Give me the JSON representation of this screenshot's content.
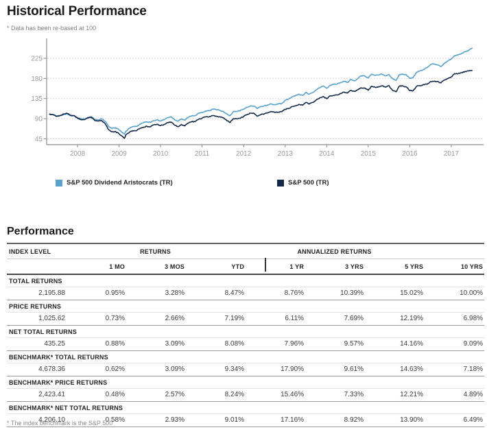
{
  "title": "Historical Performance",
  "rebase_note": "* Data has been re-based at 100",
  "colors": {
    "aristocrats_line": "#57A2CE",
    "sp500_line": "#15294B",
    "grid_line": "#d5d5d5",
    "axis_line": "#8a8a8a",
    "tick_label": "#9b9b9b"
  },
  "chart_data": {
    "type": "line",
    "title": "",
    "xlabel": "",
    "ylabel": "",
    "grid": true,
    "legend_position": "bottom",
    "x_axis": {
      "ticks": [
        2008,
        2009,
        2010,
        2011,
        2012,
        2013,
        2014,
        2015,
        2016,
        2017
      ],
      "range": [
        2007.3,
        2017.78
      ]
    },
    "y_axis": {
      "ticks": [
        45,
        90,
        135,
        180,
        225
      ],
      "range": [
        32,
        268
      ]
    },
    "series": [
      {
        "name": "S&P 500 Dividend Aristocrats (TR)",
        "color": "#57A2CE",
        "points": [
          [
            2007.33,
            100
          ],
          [
            2007.42,
            98.8
          ],
          [
            2007.5,
            96.0
          ],
          [
            2007.58,
            97.0
          ],
          [
            2007.67,
            99.5
          ],
          [
            2007.75,
            100.5
          ],
          [
            2007.83,
            96.8
          ],
          [
            2007.92,
            96.2
          ],
          [
            2008.0,
            91.8
          ],
          [
            2008.08,
            89.8
          ],
          [
            2008.17,
            89.2
          ],
          [
            2008.25,
            93.2
          ],
          [
            2008.33,
            94.2
          ],
          [
            2008.42,
            87.8
          ],
          [
            2008.5,
            87.2
          ],
          [
            2008.58,
            89.8
          ],
          [
            2008.67,
            84.0
          ],
          [
            2008.75,
            72.5
          ],
          [
            2008.83,
            67.8
          ],
          [
            2008.92,
            70.0
          ],
          [
            2009.0,
            64.8
          ],
          [
            2009.08,
            58.8
          ],
          [
            2009.13,
            55.2
          ],
          [
            2009.17,
            62.2
          ],
          [
            2009.25,
            68.6
          ],
          [
            2009.33,
            72.2
          ],
          [
            2009.42,
            72.6
          ],
          [
            2009.5,
            77.6
          ],
          [
            2009.58,
            80.6
          ],
          [
            2009.67,
            83.2
          ],
          [
            2009.75,
            81.6
          ],
          [
            2009.83,
            85.6
          ],
          [
            2009.92,
            87.2
          ],
          [
            2010.0,
            84.6
          ],
          [
            2010.08,
            87.6
          ],
          [
            2010.17,
            92.6
          ],
          [
            2010.25,
            94.6
          ],
          [
            2010.33,
            88.2
          ],
          [
            2010.42,
            84.2
          ],
          [
            2010.5,
            89.6
          ],
          [
            2010.58,
            86.6
          ],
          [
            2010.67,
            93.2
          ],
          [
            2010.75,
            96.2
          ],
          [
            2010.83,
            96.6
          ],
          [
            2010.92,
            102.2
          ],
          [
            2011.0,
            103.6
          ],
          [
            2011.08,
            107.2
          ],
          [
            2011.17,
            107.6
          ],
          [
            2011.25,
            111.2
          ],
          [
            2011.33,
            110.6
          ],
          [
            2011.42,
            108.6
          ],
          [
            2011.5,
            106.6
          ],
          [
            2011.58,
            101.6
          ],
          [
            2011.67,
            96.6
          ],
          [
            2011.75,
            105.6
          ],
          [
            2011.83,
            106.2
          ],
          [
            2011.92,
            108.6
          ],
          [
            2012.0,
            111.6
          ],
          [
            2012.08,
            115.6
          ],
          [
            2012.17,
            118.6
          ],
          [
            2012.25,
            118.0
          ],
          [
            2012.33,
            112.6
          ],
          [
            2012.42,
            117.0
          ],
          [
            2012.5,
            118.6
          ],
          [
            2012.58,
            120.6
          ],
          [
            2012.67,
            123.0
          ],
          [
            2012.75,
            121.6
          ],
          [
            2012.83,
            122.6
          ],
          [
            2012.92,
            124.0
          ],
          [
            2013.0,
            131.0
          ],
          [
            2013.08,
            133.6
          ],
          [
            2013.17,
            139.0
          ],
          [
            2013.25,
            142.0
          ],
          [
            2013.33,
            144.6
          ],
          [
            2013.42,
            142.0
          ],
          [
            2013.5,
            149.0
          ],
          [
            2013.58,
            144.6
          ],
          [
            2013.67,
            148.6
          ],
          [
            2013.75,
            155.0
          ],
          [
            2013.83,
            159.0
          ],
          [
            2013.92,
            163.0
          ],
          [
            2014.0,
            158.0
          ],
          [
            2014.08,
            164.6
          ],
          [
            2014.17,
            166.6
          ],
          [
            2014.25,
            167.6
          ],
          [
            2014.33,
            170.6
          ],
          [
            2014.42,
            173.6
          ],
          [
            2014.5,
            171.0
          ],
          [
            2014.58,
            177.6
          ],
          [
            2014.67,
            174.6
          ],
          [
            2014.75,
            180.0
          ],
          [
            2014.83,
            186.0
          ],
          [
            2014.92,
            185.6
          ],
          [
            2015.0,
            181.0
          ],
          [
            2015.08,
            189.6
          ],
          [
            2015.17,
            187.0
          ],
          [
            2015.25,
            187.6
          ],
          [
            2015.33,
            189.6
          ],
          [
            2015.42,
            186.0
          ],
          [
            2015.5,
            189.0
          ],
          [
            2015.58,
            179.6
          ],
          [
            2015.67,
            175.6
          ],
          [
            2015.75,
            188.6
          ],
          [
            2015.83,
            190.0
          ],
          [
            2015.92,
            188.0
          ],
          [
            2016.0,
            180.6
          ],
          [
            2016.08,
            181.6
          ],
          [
            2016.17,
            194.0
          ],
          [
            2016.25,
            196.6
          ],
          [
            2016.33,
            200.0
          ],
          [
            2016.42,
            204.0
          ],
          [
            2016.5,
            211.0
          ],
          [
            2016.58,
            212.5
          ],
          [
            2016.67,
            210.5
          ],
          [
            2016.75,
            206.5
          ],
          [
            2016.83,
            213.5
          ],
          [
            2016.92,
            219.0
          ],
          [
            2017.0,
            223.5
          ],
          [
            2017.08,
            231.0
          ],
          [
            2017.17,
            232.5
          ],
          [
            2017.25,
            236.0
          ],
          [
            2017.33,
            239.5
          ],
          [
            2017.42,
            243.0
          ],
          [
            2017.5,
            247.5
          ]
        ]
      },
      {
        "name": "S&P 500 (TR)",
        "color": "#15294B",
        "points": [
          [
            2007.33,
            100
          ],
          [
            2007.42,
            98.3
          ],
          [
            2007.5,
            95.3
          ],
          [
            2007.58,
            96.7
          ],
          [
            2007.67,
            100.3
          ],
          [
            2007.75,
            101.9
          ],
          [
            2007.83,
            97.6
          ],
          [
            2007.92,
            96.9
          ],
          [
            2008.0,
            91.1
          ],
          [
            2008.08,
            88.2
          ],
          [
            2008.17,
            87.8
          ],
          [
            2008.25,
            92.1
          ],
          [
            2008.33,
            93.3
          ],
          [
            2008.42,
            85.5
          ],
          [
            2008.5,
            84.8
          ],
          [
            2008.58,
            86.0
          ],
          [
            2008.67,
            78.3
          ],
          [
            2008.75,
            65.1
          ],
          [
            2008.83,
            60.4
          ],
          [
            2008.92,
            61.1
          ],
          [
            2009.0,
            56.0
          ],
          [
            2009.08,
            50.1
          ],
          [
            2009.13,
            46.2
          ],
          [
            2009.17,
            54.5
          ],
          [
            2009.25,
            59.7
          ],
          [
            2009.33,
            63.0
          ],
          [
            2009.42,
            63.1
          ],
          [
            2009.5,
            67.9
          ],
          [
            2009.58,
            70.4
          ],
          [
            2009.67,
            73.0
          ],
          [
            2009.75,
            71.6
          ],
          [
            2009.83,
            75.9
          ],
          [
            2009.92,
            77.3
          ],
          [
            2010.0,
            74.5
          ],
          [
            2010.08,
            76.8
          ],
          [
            2010.17,
            81.4
          ],
          [
            2010.25,
            82.7
          ],
          [
            2010.33,
            76.1
          ],
          [
            2010.42,
            72.1
          ],
          [
            2010.5,
            77.2
          ],
          [
            2010.58,
            73.7
          ],
          [
            2010.67,
            80.3
          ],
          [
            2010.75,
            83.3
          ],
          [
            2010.83,
            83.3
          ],
          [
            2010.92,
            88.9
          ],
          [
            2011.0,
            91.0
          ],
          [
            2011.08,
            94.1
          ],
          [
            2011.17,
            94.1
          ],
          [
            2011.25,
            96.9
          ],
          [
            2011.33,
            95.8
          ],
          [
            2011.42,
            94.2
          ],
          [
            2011.5,
            92.3
          ],
          [
            2011.58,
            87.3
          ],
          [
            2011.67,
            81.2
          ],
          [
            2011.75,
            90.1
          ],
          [
            2011.83,
            89.9
          ],
          [
            2011.92,
            90.8
          ],
          [
            2012.0,
            94.9
          ],
          [
            2012.08,
            99.0
          ],
          [
            2012.17,
            102.3
          ],
          [
            2012.25,
            101.7
          ],
          [
            2012.33,
            95.6
          ],
          [
            2012.42,
            99.5
          ],
          [
            2012.5,
            100.9
          ],
          [
            2012.58,
            103.2
          ],
          [
            2012.67,
            105.9
          ],
          [
            2012.75,
            104.0
          ],
          [
            2012.83,
            104.6
          ],
          [
            2012.92,
            105.5
          ],
          [
            2013.0,
            111.0
          ],
          [
            2013.08,
            112.6
          ],
          [
            2013.17,
            116.9
          ],
          [
            2013.25,
            119.1
          ],
          [
            2013.33,
            121.8
          ],
          [
            2013.42,
            120.2
          ],
          [
            2013.5,
            126.3
          ],
          [
            2013.58,
            122.6
          ],
          [
            2013.67,
            126.4
          ],
          [
            2013.75,
            132.2
          ],
          [
            2013.83,
            136.2
          ],
          [
            2013.92,
            139.6
          ],
          [
            2014.0,
            134.7
          ],
          [
            2014.08,
            140.9
          ],
          [
            2014.17,
            142.0
          ],
          [
            2014.25,
            143.0
          ],
          [
            2014.33,
            146.3
          ],
          [
            2014.42,
            149.4
          ],
          [
            2014.5,
            147.3
          ],
          [
            2014.58,
            153.2
          ],
          [
            2014.67,
            151.1
          ],
          [
            2014.75,
            154.7
          ],
          [
            2014.83,
            158.9
          ],
          [
            2014.92,
            158.4
          ],
          [
            2015.0,
            153.6
          ],
          [
            2015.08,
            162.4
          ],
          [
            2015.17,
            159.8
          ],
          [
            2015.25,
            161.4
          ],
          [
            2015.33,
            163.5
          ],
          [
            2015.42,
            160.4
          ],
          [
            2015.5,
            163.8
          ],
          [
            2015.58,
            154.0
          ],
          [
            2015.67,
            150.1
          ],
          [
            2015.75,
            162.7
          ],
          [
            2015.83,
            163.2
          ],
          [
            2015.92,
            160.6
          ],
          [
            2016.0,
            152.6
          ],
          [
            2016.08,
            152.4
          ],
          [
            2016.17,
            162.8
          ],
          [
            2016.25,
            163.4
          ],
          [
            2016.33,
            166.4
          ],
          [
            2016.42,
            166.9
          ],
          [
            2016.5,
            173.0
          ],
          [
            2016.58,
            173.2
          ],
          [
            2016.67,
            173.2
          ],
          [
            2016.75,
            170.1
          ],
          [
            2016.83,
            176.4
          ],
          [
            2016.92,
            179.9
          ],
          [
            2017.0,
            183.3
          ],
          [
            2017.08,
            190.7
          ],
          [
            2017.17,
            190.9
          ],
          [
            2017.25,
            192.8
          ],
          [
            2017.33,
            195.5
          ],
          [
            2017.42,
            196.6
          ],
          [
            2017.5,
            197.5
          ]
        ]
      }
    ]
  },
  "performance": {
    "heading": "Performance",
    "index_level_header": "INDEX LEVEL",
    "returns_header": "RETURNS",
    "annualized_header": "ANNUALIZED RETURNS",
    "columns": [
      "1 MO",
      "3 MOS",
      "YTD",
      "1 YR",
      "3 YRS",
      "5 YRS",
      "10 YRS"
    ],
    "rows": [
      {
        "label": "TOTAL RETURNS",
        "index_level": "2,195.88",
        "values": [
          "0.95%",
          "3.28%",
          "8.47%",
          "8.76%",
          "10.39%",
          "15.02%",
          "10.00%"
        ]
      },
      {
        "label": "PRICE RETURNS",
        "index_level": "1,025.62",
        "values": [
          "0.73%",
          "2.66%",
          "7.19%",
          "6.11%",
          "7.69%",
          "12.19%",
          "6.98%"
        ]
      },
      {
        "label": "NET TOTAL RETURNS",
        "index_level": "435.25",
        "values": [
          "0.88%",
          "3.09%",
          "8.08%",
          "7.96%",
          "9.57%",
          "14.16%",
          "9.09%"
        ]
      },
      {
        "label": "BENCHMARK* TOTAL RETURNS",
        "index_level": "4,678.36",
        "values": [
          "0.62%",
          "3.09%",
          "9.34%",
          "17.90%",
          "9.61%",
          "14.63%",
          "7.18%"
        ]
      },
      {
        "label": "BENCHMARK* PRICE RETURNS",
        "index_level": "2,423.41",
        "values": [
          "0.48%",
          "2.57%",
          "8.24%",
          "15.46%",
          "7.33%",
          "12.21%",
          "4.89%"
        ]
      },
      {
        "label": "BENCHMARK* NET TOTAL RETURNS",
        "index_level": "4,206.10",
        "values": [
          "0.58%",
          "2.93%",
          "9.01%",
          "17.16%",
          "8.92%",
          "13.90%",
          "6.49%"
        ]
      }
    ],
    "footnote": "* The index benchmark is the S&P 500"
  }
}
